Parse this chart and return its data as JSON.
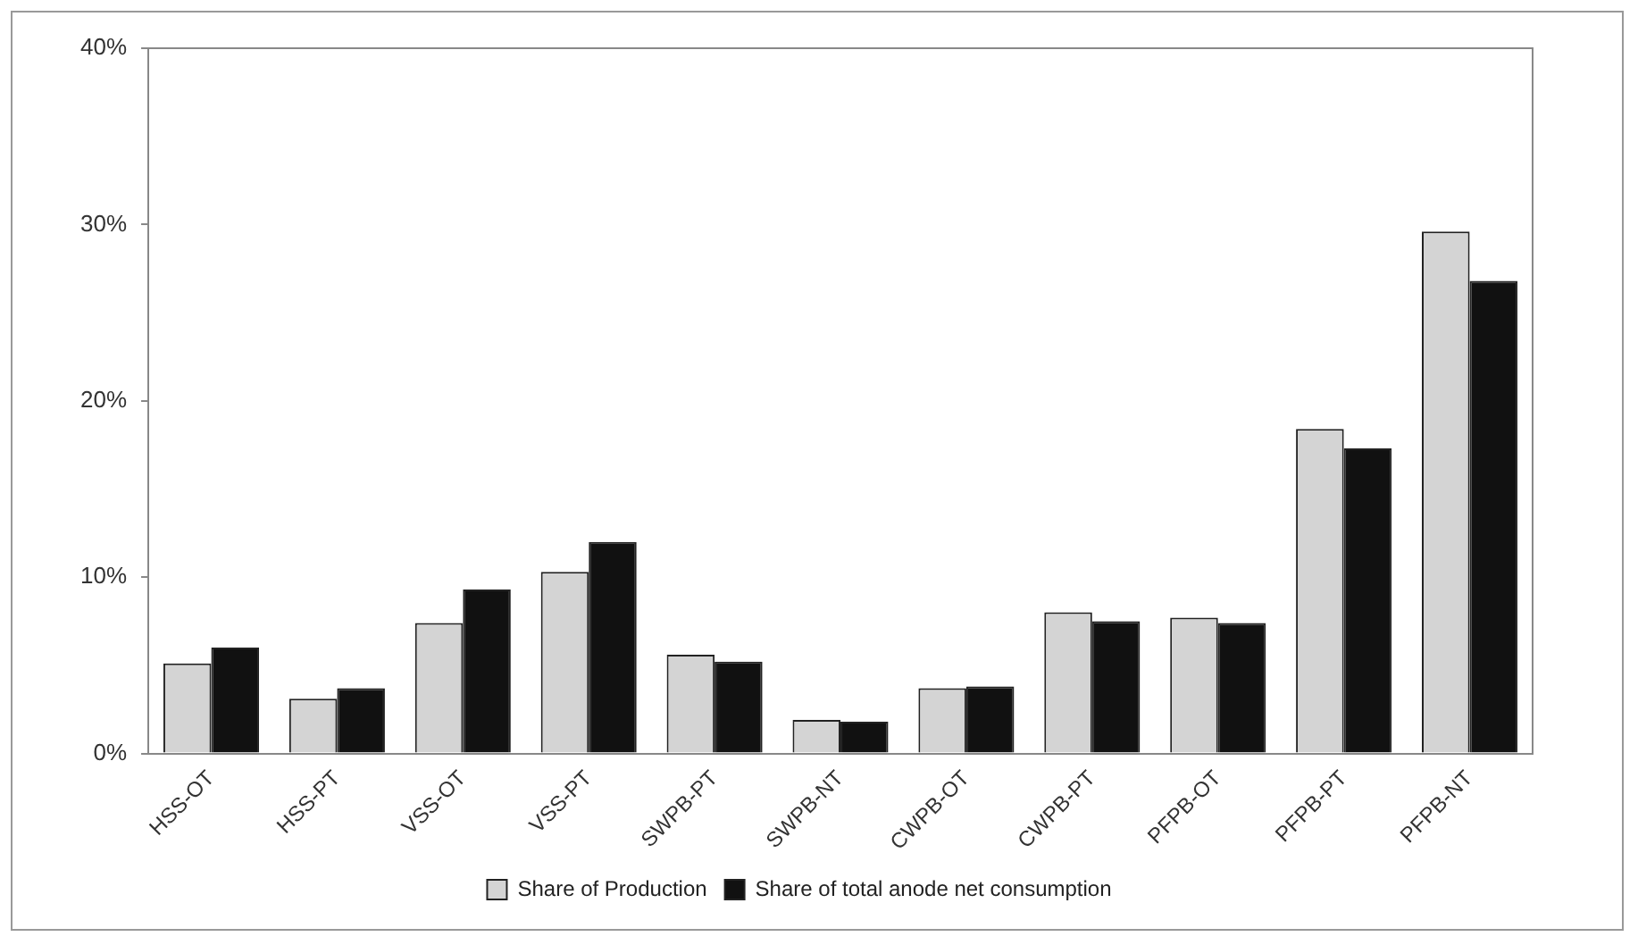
{
  "chart_data": {
    "type": "bar",
    "categories": [
      "HSS-OT",
      "HSS-PT",
      "VSS-OT",
      "VSS-PT",
      "SWPB-PT",
      "SWPB-NT",
      "CWPB-OT",
      "CWPB-PT",
      "PFPB-OT",
      "PFPB-PT",
      "PFPB-NT"
    ],
    "series": [
      {
        "name": "Share of Production",
        "color": "#d4d4d4",
        "values": [
          5.1,
          3.1,
          7.4,
          10.3,
          5.6,
          1.9,
          3.7,
          8.0,
          7.7,
          18.4,
          29.6
        ]
      },
      {
        "name": "Share of total anode net consumption",
        "color": "#111111",
        "values": [
          6.0,
          3.7,
          9.3,
          12.0,
          5.2,
          1.8,
          3.8,
          7.5,
          7.4,
          17.3,
          26.8
        ]
      }
    ],
    "ylim": [
      0,
      40
    ],
    "yticks": [
      {
        "value": 0,
        "label": "0%"
      },
      {
        "value": 10,
        "label": "10%"
      },
      {
        "value": 20,
        "label": "20%"
      },
      {
        "value": 30,
        "label": "30%"
      },
      {
        "value": 40,
        "label": "40%"
      }
    ],
    "grid": false,
    "legend": "bottom"
  }
}
